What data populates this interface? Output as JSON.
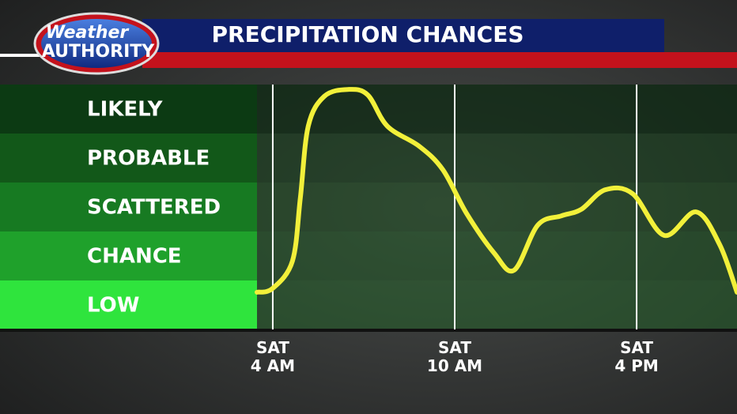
{
  "logo": {
    "line1": "Weather",
    "line2": "AUTHORITY"
  },
  "chart_data": {
    "type": "line",
    "title": "PRECIPITATION CHANCES",
    "x": [
      3.48,
      4,
      4.65,
      4.91,
      5.17,
      5.7,
      6.48,
      7.13,
      7.78,
      8.83,
      9.61,
      10.39,
      11.3,
      11.96,
      12.74,
      13.52,
      14.17,
      14.96,
      15.87,
      16.91,
      17.96,
      18.74,
      19.31
    ],
    "values": [
      0.76,
      0.84,
      1.4,
      2.69,
      4.15,
      4.76,
      4.9,
      4.79,
      4.15,
      3.74,
      3.26,
      2.37,
      1.56,
      1.21,
      2.13,
      2.32,
      2.45,
      2.85,
      2.77,
      1.92,
      2.4,
      1.73,
      0.76
    ],
    "color": "#f2f03a",
    "xlim": [
      3.48,
      19.31
    ],
    "xticks": [
      {
        "value": 4,
        "label": "SAT\n4 AM"
      },
      {
        "value": 10,
        "label": "SAT\n10 AM"
      },
      {
        "value": 16,
        "label": "SAT\n4 PM"
      }
    ],
    "ylim": [
      0,
      5
    ],
    "yticks": [
      {
        "value": 4.5,
        "label": "LIKELY"
      },
      {
        "value": 3.5,
        "label": "PROBABLE"
      },
      {
        "value": 2.5,
        "label": "SCATTERED"
      },
      {
        "value": 1.5,
        "label": "CHANCE"
      },
      {
        "value": 0.5,
        "label": "LOW"
      }
    ],
    "grid": true
  }
}
